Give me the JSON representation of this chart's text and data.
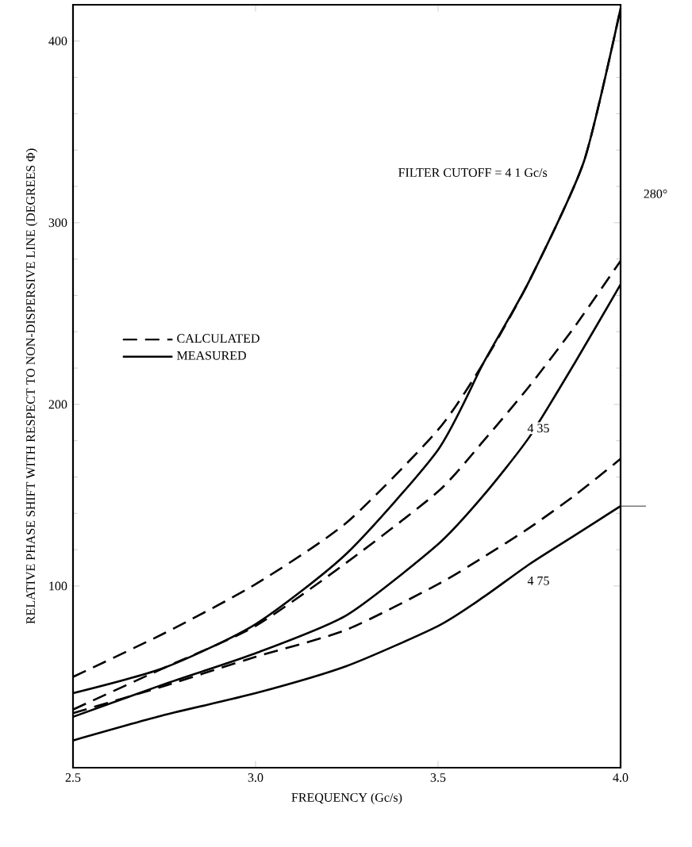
{
  "chart_data": {
    "type": "line",
    "xlabel": "FREQUENCY (Gc/s)",
    "ylabel": "RELATIVE PHASE SHIFT WITH RESPECT TO NON-DISPERSIVE LINE (DEGREES Φ)",
    "x": [
      2.5,
      2.75,
      3.0,
      3.25,
      3.5,
      3.625,
      3.75,
      3.875,
      4.0
    ],
    "series": [
      {
        "name": "CALCULATED",
        "color": "#000000",
        "line_style": "dashed",
        "x": [
          2.5,
          2.75,
          3.0,
          3.25,
          3.5,
          3.625,
          3.75,
          3.9,
          4.0
        ],
        "values": [
          50,
          74,
          101,
          135,
          186,
          223,
          268,
          334,
          418
        ]
      },
      {
        "name": "MEASURED",
        "color": "#000000",
        "line_style": "solid",
        "x": [
          2.5,
          2.75,
          3.0,
          3.25,
          3.5,
          3.625,
          3.75,
          3.9,
          4.0
        ],
        "values": [
          41,
          55,
          79,
          118,
          175,
          223,
          268,
          334,
          418
        ]
      },
      {
        "color": "#000000",
        "line_style": "dashed",
        "values": [
          32,
          55,
          78,
          113,
          152,
          180,
          210,
          243,
          279
        ]
      },
      {
        "color": "#000000",
        "line_style": "solid",
        "values": [
          28,
          46,
          63,
          84,
          123,
          150,
          182,
          223,
          266
        ]
      },
      {
        "color": "#000000",
        "line_style": "dashed",
        "values": [
          30,
          45,
          61,
          76,
          101,
          116,
          132,
          150,
          170
        ]
      },
      {
        "color": "#000000",
        "line_style": "solid",
        "values": [
          15,
          29,
          41,
          56,
          78,
          94,
          112,
          128,
          144
        ]
      }
    ],
    "xlim": [
      2.5,
      4.0
    ],
    "xticks": [
      2.5,
      {
        "value": 3,
        "label": "3.0"
      },
      3.5,
      {
        "value": 4,
        "label": "4.0"
      }
    ],
    "ylim": [
      0,
      420
    ],
    "yticks": [
      100,
      200,
      300,
      400
    ],
    "legend": "left",
    "grid": false,
    "marker": "none",
    "annotations": [
      "FILTER CUTOFF = 4 1 Gc/s",
      "4 35",
      "4 75",
      "280°"
    ]
  }
}
